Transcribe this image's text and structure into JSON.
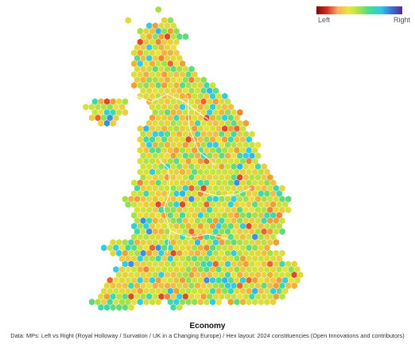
{
  "legend": {
    "left_label": "Left",
    "right_label": "Right",
    "colors": [
      "#7a0a0a",
      "#d7301f",
      "#fdae61",
      "#e8e83a",
      "#a6e24a",
      "#3ddc97",
      "#2fc9e8",
      "#3a74d8",
      "#5b2a86"
    ]
  },
  "title": "Economy",
  "caption": "Data: MPs: Left vs Right (Royal Holloway / Survation / UK in a Changing Europe)  /  Hex layout: 2024 constituencies (Open Innovations and contributors)",
  "map": {
    "background": "#ffffff",
    "hex_stroke": "#ffffff",
    "boundary_color": "#ffffff"
  }
}
